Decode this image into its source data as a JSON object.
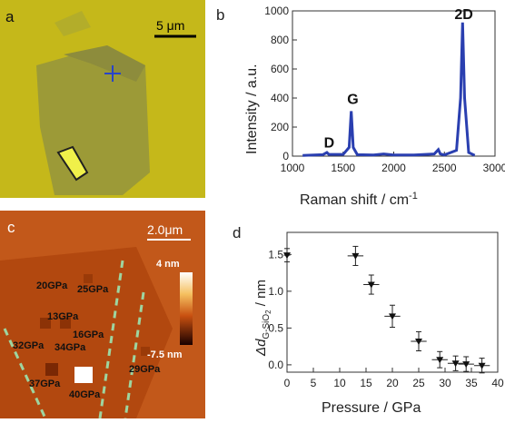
{
  "panel_a": {
    "label": "a",
    "scalebar": "5 μm"
  },
  "panel_b": {
    "label": "b",
    "ylabel": "Intensity / a.u.",
    "xlabel": "Raman shift / cm",
    "xlabel_sup": "-1",
    "peak_d": "D",
    "peak_g": "G",
    "peak_2d": "2D",
    "x_ticks": [
      "1000",
      "1500",
      "2000",
      "2500",
      "3000"
    ],
    "y_ticks": [
      "0",
      "200",
      "400",
      "600",
      "800",
      "1000"
    ]
  },
  "panel_c": {
    "label": "c",
    "scalebar": "2.0μm",
    "colorbar_top": "4 nm",
    "colorbar_bottom": "-7.5 nm",
    "points": [
      "20GPa",
      "25GPa",
      "13GPa",
      "16GPa",
      "32GPa",
      "34GPa",
      "29GPa",
      "37GPa",
      "40GPa"
    ]
  },
  "panel_d": {
    "label": "d",
    "ylabel_pre": "Δd",
    "ylabel_sub": "G-SiO",
    "ylabel_sub2": "2",
    "ylabel_post": " / nm",
    "xlabel": "Pressure / GPa",
    "x_ticks": [
      "0",
      "5",
      "10",
      "15",
      "20",
      "25",
      "30",
      "35",
      "40"
    ],
    "y_ticks": [
      "0.0",
      "0.5",
      "1.0",
      "1.5"
    ]
  },
  "chart_data": [
    {
      "type": "line",
      "title": "",
      "xlabel": "Raman shift / cm-1",
      "ylabel": "Intensity / a.u.",
      "xlim": [
        1000,
        3000
      ],
      "ylim": [
        0,
        1000
      ],
      "annotations": [
        "D",
        "G",
        "2D"
      ],
      "x": [
        1100,
        1300,
        1340,
        1360,
        1500,
        1560,
        1580,
        1600,
        1640,
        1800,
        1900,
        2000,
        2200,
        2400,
        2440,
        2460,
        2500,
        2620,
        2660,
        2680,
        2700,
        2740,
        2800
      ],
      "y": [
        5,
        10,
        25,
        12,
        12,
        60,
        310,
        60,
        10,
        8,
        15,
        8,
        8,
        15,
        45,
        15,
        8,
        40,
        400,
        920,
        400,
        25,
        5
      ]
    },
    {
      "type": "scatter",
      "title": "",
      "xlabel": "Pressure / GPa",
      "ylabel": "Δd G-SiO2 / nm",
      "xlim": [
        0,
        40
      ],
      "ylim": [
        -0.1,
        1.8
      ],
      "x": [
        0,
        13,
        16,
        20,
        25,
        29,
        32,
        34,
        37
      ],
      "y": [
        1.49,
        1.48,
        1.09,
        0.66,
        0.32,
        0.07,
        0.02,
        0.01,
        -0.01
      ],
      "yerr": [
        0.09,
        0.13,
        0.13,
        0.15,
        0.13,
        0.11,
        0.1,
        0.1,
        0.1
      ],
      "xerr": [
        0.6,
        1.5,
        1.5,
        1.5,
        1.5,
        1.5,
        1.5,
        1.5,
        1.5
      ]
    }
  ]
}
